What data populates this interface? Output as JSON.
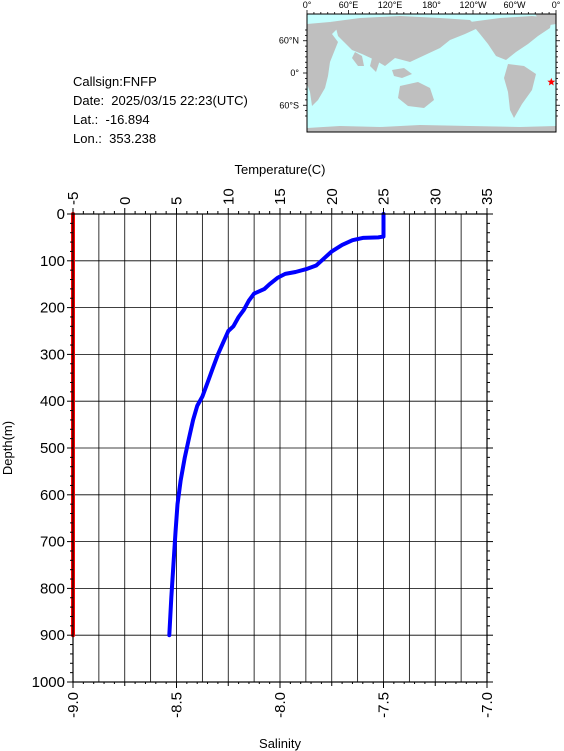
{
  "info": {
    "callsign": "Callsign:FNFP",
    "date": "Date:  2025/03/15 22:23(UTC)",
    "lat": "Lat.:  -16.894",
    "lon": "Lon.:  353.238"
  },
  "map": {
    "lon_labels": [
      "0°",
      "60°E",
      "120°E",
      "180°",
      "120°W",
      "60°W",
      "0°"
    ],
    "lat_labels": [
      "60°N",
      "0°",
      "60°S"
    ],
    "station_lon": 353.238,
    "station_lat": -16.894,
    "ocean_color": "#c6ffff",
    "land_color": "#bfbfbf",
    "marker_color": "#ff0000"
  },
  "chart_data": {
    "type": "line",
    "y_axis": {
      "label": "Depth(m)",
      "range": [
        0,
        1000
      ],
      "inverted": true,
      "ticks": [
        0,
        100,
        200,
        300,
        400,
        500,
        600,
        700,
        800,
        900,
        1000
      ]
    },
    "x_axis_top": {
      "label": "Temperature(C)",
      "range": [
        -5,
        35
      ],
      "ticks": [
        -5,
        0,
        5,
        10,
        15,
        20,
        25,
        30,
        35
      ]
    },
    "x_axis_bottom": {
      "label": "Salinity",
      "range": [
        -9.0,
        -7.0
      ],
      "ticks": [
        "-9.0",
        "-8.5",
        "-8.0",
        "-7.5",
        "-7.0"
      ]
    },
    "grid": true,
    "series": [
      {
        "color": "#0000ff",
        "axis": "top",
        "points": [
          [
            25.0,
            0
          ],
          [
            25.0,
            20
          ],
          [
            25.0,
            48
          ],
          [
            24.5,
            50
          ],
          [
            23.0,
            51
          ],
          [
            22.0,
            56
          ],
          [
            21.0,
            66
          ],
          [
            20.0,
            80
          ],
          [
            19.0,
            100
          ],
          [
            18.5,
            110
          ],
          [
            17.5,
            118
          ],
          [
            16.5,
            124
          ],
          [
            15.5,
            128
          ],
          [
            14.8,
            136
          ],
          [
            14.0,
            150
          ],
          [
            13.5,
            160
          ],
          [
            12.5,
            170
          ],
          [
            12.0,
            185
          ],
          [
            11.5,
            205
          ],
          [
            11.0,
            220
          ],
          [
            10.5,
            240
          ],
          [
            10.0,
            250
          ],
          [
            9.5,
            275
          ],
          [
            9.0,
            300
          ],
          [
            8.5,
            330
          ],
          [
            8.0,
            360
          ],
          [
            7.5,
            390
          ],
          [
            7.0,
            410
          ],
          [
            6.6,
            440
          ],
          [
            6.2,
            480
          ],
          [
            5.8,
            520
          ],
          [
            5.4,
            570
          ],
          [
            5.1,
            620
          ],
          [
            4.9,
            680
          ],
          [
            4.7,
            750
          ],
          [
            4.5,
            820
          ],
          [
            4.3,
            900
          ]
        ]
      },
      {
        "color": "#ff0000",
        "axis": "bottom",
        "points": [
          [
            -9.0,
            0
          ],
          [
            -9.0,
            900
          ]
        ]
      }
    ]
  }
}
